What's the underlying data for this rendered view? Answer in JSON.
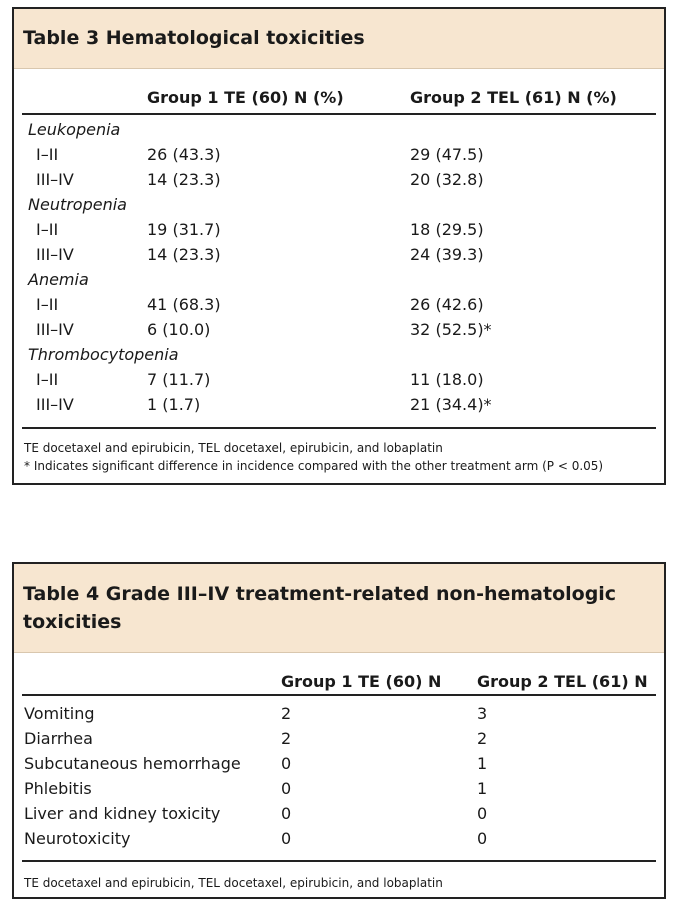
{
  "tables": [
    {
      "title": "Table 3 Hematological toxicities",
      "header": [
        "Group 1 TE (60) N (%)",
        "Group 2 TEL (61) N (%)"
      ],
      "sections": [
        {
          "name": "Leukopenia",
          "rows": [
            [
              "I–II",
              "26 (43.3)",
              "29 (47.5)"
            ],
            [
              "III–IV",
              "14 (23.3)",
              "20 (32.8)"
            ]
          ]
        },
        {
          "name": "Neutropenia",
          "rows": [
            [
              "I–II",
              "19 (31.7)",
              "18 (29.5)"
            ],
            [
              "III–IV",
              "14 (23.3)",
              "24 (39.3)"
            ]
          ]
        },
        {
          "name": "Anemia",
          "rows": [
            [
              "I–II",
              "41 (68.3)",
              "26 (42.6)"
            ],
            [
              "III–IV",
              "6 (10.0)",
              "32 (52.5)*"
            ]
          ]
        },
        {
          "name": "Thrombocytopenia",
          "rows": [
            [
              "I–II",
              "7 (11.7)",
              "11 (18.0)"
            ],
            [
              "III–IV",
              "1 (1.7)",
              "21 (34.4)*"
            ]
          ]
        }
      ],
      "footnotes": [
        "TE docetaxel and epirubicin, TEL docetaxel, epirubicin, and lobaplatin",
        "* Indicates significant difference in incidence compared with the other treatment arm (P < 0.05)"
      ]
    },
    {
      "title": "Table 4 Grade III–IV treatment-related non-hematologic toxicities",
      "header": [
        "Group 1 TE (60) N",
        "Group 2 TEL (61) N"
      ],
      "rows": [
        [
          "Vomiting",
          "2",
          "3"
        ],
        [
          "Diarrhea",
          "2",
          "2"
        ],
        [
          "Subcutaneous hemorrhage",
          "0",
          "1"
        ],
        [
          "Phlebitis",
          "0",
          "1"
        ],
        [
          "Liver and kidney toxicity",
          "0",
          "0"
        ],
        [
          "Neurotoxicity",
          "0",
          "0"
        ]
      ],
      "footnotes": [
        "TE docetaxel and epirubicin, TEL docetaxel, epirubicin, and lobaplatin"
      ]
    }
  ]
}
